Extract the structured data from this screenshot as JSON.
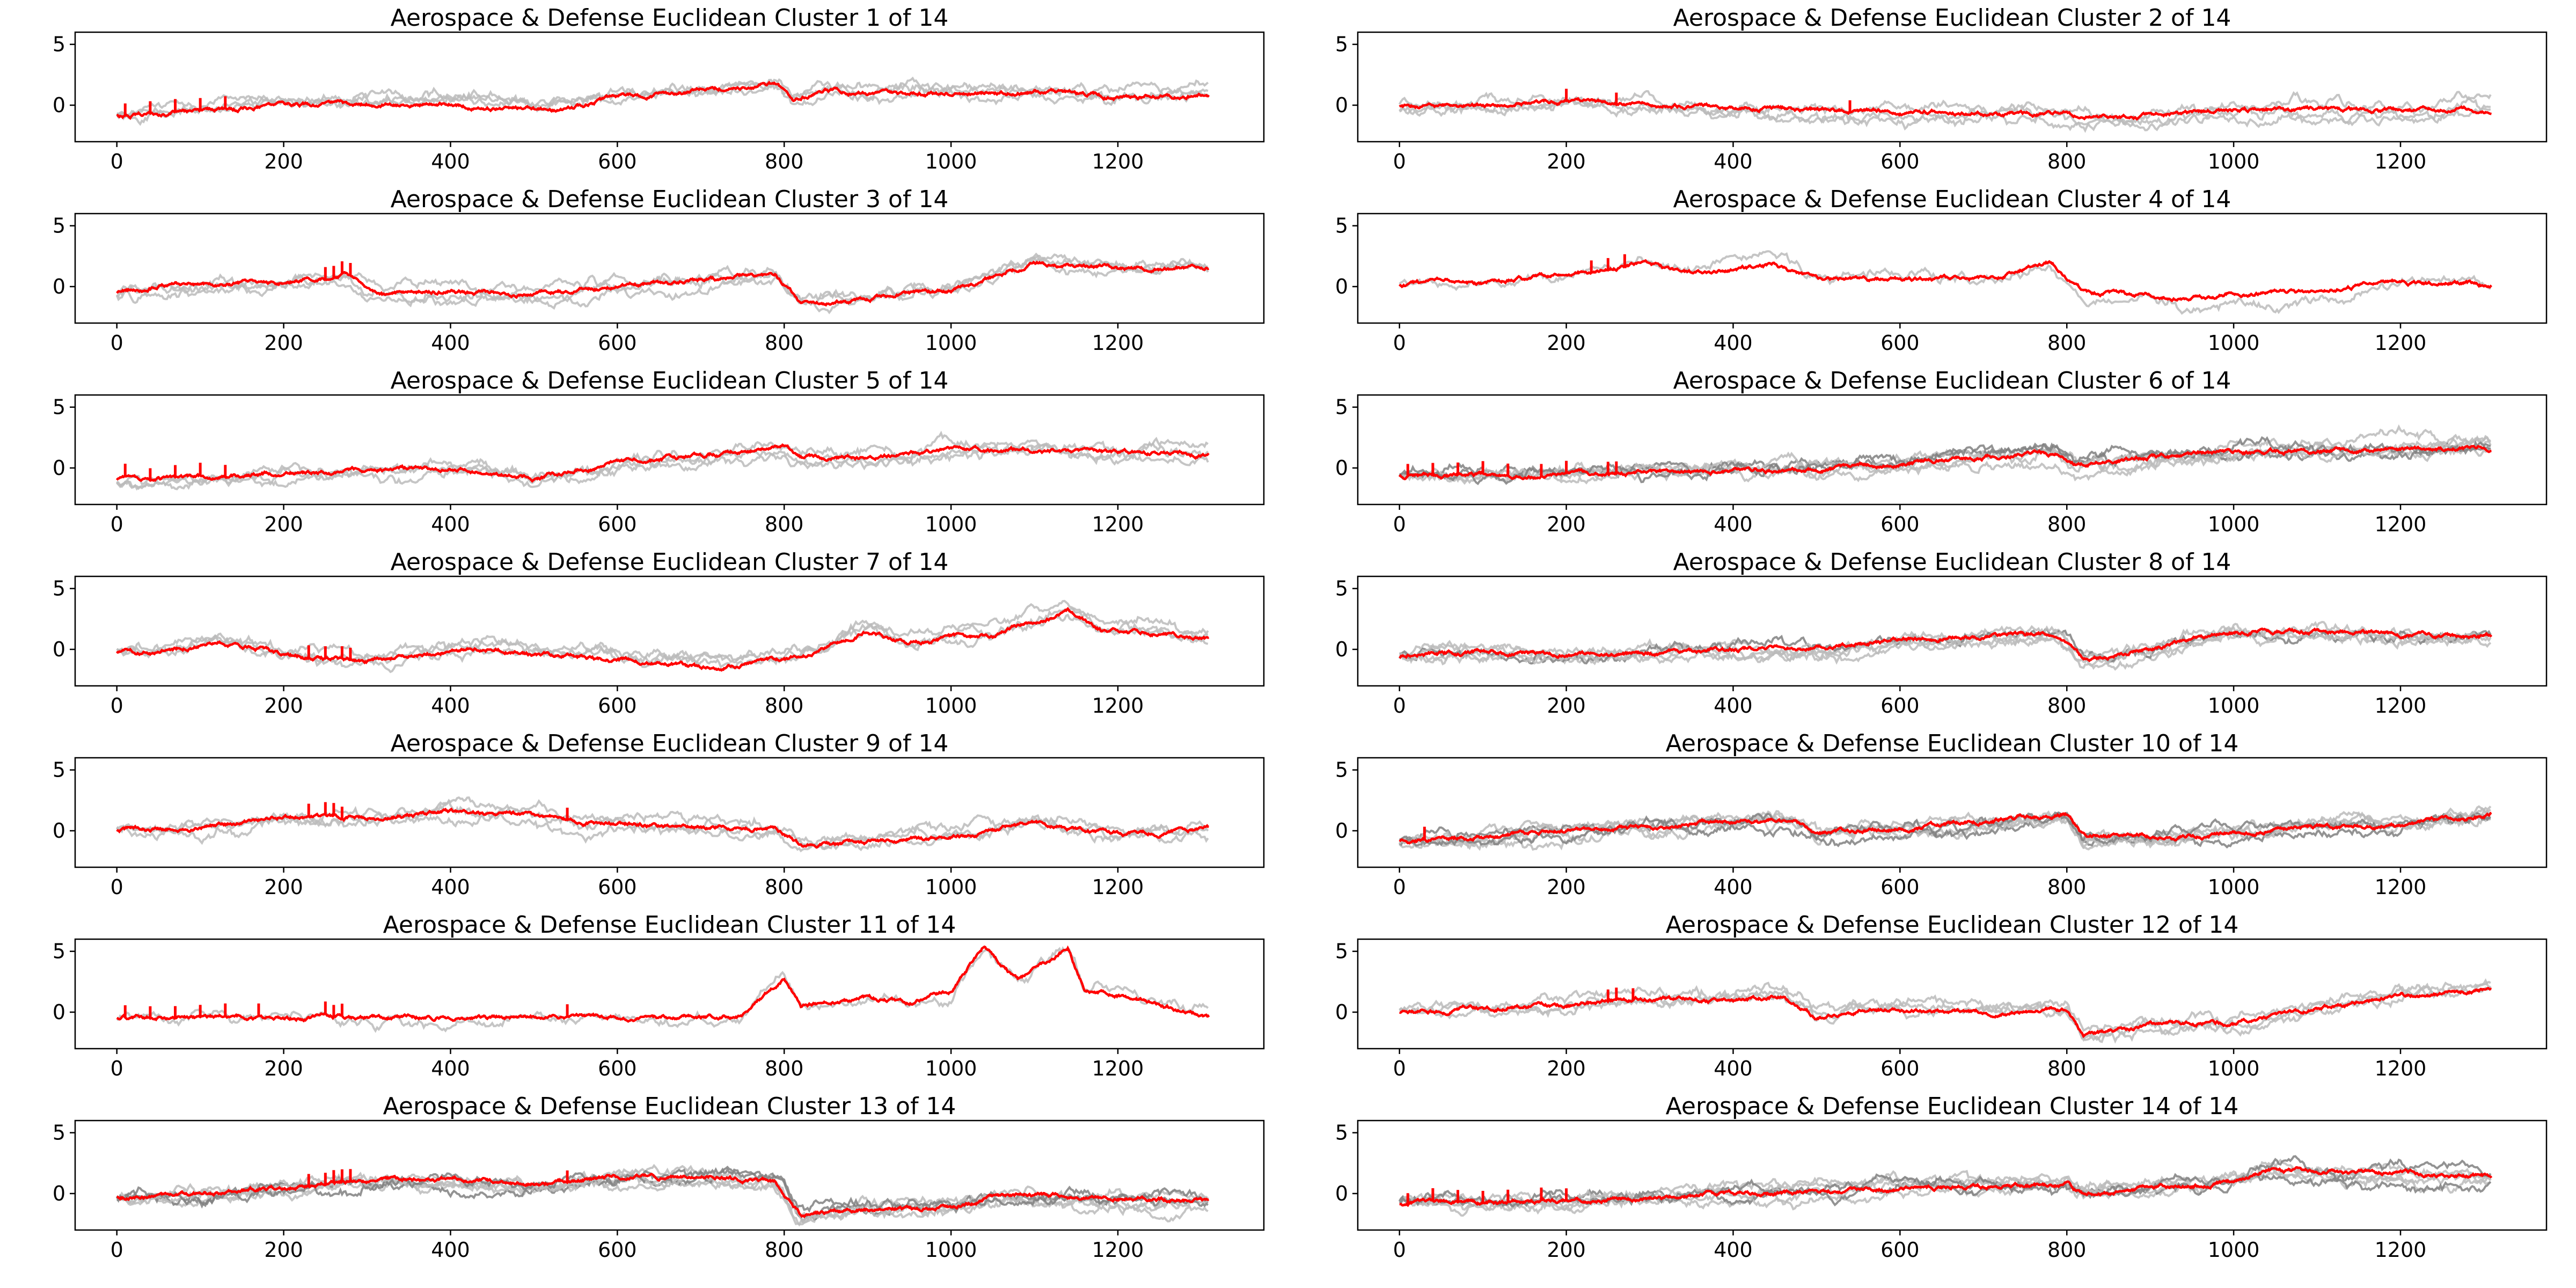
{
  "figure": {
    "title_template": "Aerospace & Defense Euclidean Cluster {n} of 14",
    "x_ticks": [
      0,
      200,
      400,
      600,
      800,
      1000,
      1200
    ],
    "y_ticks": [
      0,
      5
    ],
    "xlim": [
      -50,
      1375
    ],
    "ylim": [
      -3,
      6
    ],
    "colors": {
      "centroid": "#ff0000",
      "member": "#bbbbbb",
      "member_dark": "#808080",
      "frame": "#000000"
    }
  },
  "chart_data": [
    {
      "type": "line",
      "title": "Aerospace & Defense Euclidean Cluster 1 of 14",
      "series_points": 1310,
      "n_members": 3,
      "centroid_anchors": [
        [
          0,
          -0.9
        ],
        [
          100,
          -0.5
        ],
        [
          200,
          0.0
        ],
        [
          300,
          0.1
        ],
        [
          400,
          0.1
        ],
        [
          480,
          -0.3
        ],
        [
          520,
          -0.4
        ],
        [
          600,
          0.6
        ],
        [
          700,
          1.3
        ],
        [
          790,
          1.8
        ],
        [
          810,
          0.3
        ],
        [
          850,
          1.3
        ],
        [
          900,
          1.0
        ],
        [
          1000,
          0.9
        ],
        [
          1100,
          1.2
        ],
        [
          1200,
          0.6
        ],
        [
          1310,
          0.9
        ]
      ],
      "spikes": [
        10,
        40,
        70,
        100,
        130
      ]
    },
    {
      "type": "line",
      "title": "Aerospace & Defense Euclidean Cluster 2 of 14",
      "series_points": 1310,
      "n_members": 3,
      "centroid_anchors": [
        [
          0,
          -0.2
        ],
        [
          100,
          0.0
        ],
        [
          200,
          0.3
        ],
        [
          300,
          0.1
        ],
        [
          400,
          -0.1
        ],
        [
          500,
          -0.4
        ],
        [
          600,
          -0.6
        ],
        [
          700,
          -0.6
        ],
        [
          800,
          -0.8
        ],
        [
          820,
          -1.1
        ],
        [
          900,
          -0.9
        ],
        [
          1000,
          -0.4
        ],
        [
          1100,
          -0.3
        ],
        [
          1200,
          -0.4
        ],
        [
          1310,
          -0.3
        ]
      ],
      "spikes": [
        200,
        260,
        540
      ]
    },
    {
      "type": "line",
      "title": "Aerospace & Defense Euclidean Cluster 3 of 14",
      "series_points": 1310,
      "n_members": 3,
      "centroid_anchors": [
        [
          0,
          -0.5
        ],
        [
          50,
          0.1
        ],
        [
          200,
          0.4
        ],
        [
          280,
          0.9
        ],
        [
          320,
          -0.6
        ],
        [
          400,
          -0.4
        ],
        [
          500,
          -0.6
        ],
        [
          600,
          0.0
        ],
        [
          700,
          0.5
        ],
        [
          790,
          1.0
        ],
        [
          820,
          -1.4
        ],
        [
          900,
          -1.0
        ],
        [
          1000,
          -0.4
        ],
        [
          1100,
          2.0
        ],
        [
          1200,
          1.4
        ],
        [
          1310,
          1.7
        ]
      ],
      "spikes": [
        250,
        260,
        270,
        280
      ]
    },
    {
      "type": "line",
      "title": "Aerospace & Defense Euclidean Cluster 4 of 14",
      "series_points": 1310,
      "n_members": 1,
      "centroid_anchors": [
        [
          0,
          0.0
        ],
        [
          50,
          0.4
        ],
        [
          100,
          0.2
        ],
        [
          200,
          1.0
        ],
        [
          290,
          1.9
        ],
        [
          350,
          1.0
        ],
        [
          450,
          1.8
        ],
        [
          500,
          0.6
        ],
        [
          600,
          0.6
        ],
        [
          700,
          0.7
        ],
        [
          780,
          2.0
        ],
        [
          820,
          -0.5
        ],
        [
          900,
          -0.8
        ],
        [
          950,
          -1.1
        ],
        [
          1000,
          -0.5
        ],
        [
          1100,
          -0.4
        ],
        [
          1200,
          0.4
        ],
        [
          1310,
          0.1
        ]
      ],
      "spikes": [
        230,
        250,
        270
      ]
    },
    {
      "type": "line",
      "title": "Aerospace & Defense Euclidean Cluster 5 of 14",
      "series_points": 1310,
      "n_members": 3,
      "centroid_anchors": [
        [
          0,
          -0.9
        ],
        [
          100,
          -0.8
        ],
        [
          200,
          -0.4
        ],
        [
          300,
          -0.2
        ],
        [
          400,
          0.0
        ],
        [
          500,
          -0.8
        ],
        [
          600,
          0.5
        ],
        [
          700,
          1.0
        ],
        [
          800,
          1.8
        ],
        [
          820,
          0.9
        ],
        [
          900,
          0.8
        ],
        [
          1000,
          1.5
        ],
        [
          1100,
          1.5
        ],
        [
          1200,
          1.2
        ],
        [
          1310,
          1.2
        ]
      ],
      "spikes": [
        10,
        40,
        70,
        100,
        130
      ]
    },
    {
      "type": "line",
      "title": "Aerospace & Defense Euclidean Cluster 6 of 14",
      "series_points": 1310,
      "n_members": 6,
      "centroid_anchors": [
        [
          0,
          -0.7
        ],
        [
          100,
          -0.6
        ],
        [
          200,
          -0.5
        ],
        [
          300,
          -0.4
        ],
        [
          400,
          -0.2
        ],
        [
          500,
          -0.2
        ],
        [
          600,
          0.4
        ],
        [
          700,
          0.9
        ],
        [
          790,
          1.2
        ],
        [
          810,
          0.3
        ],
        [
          900,
          0.9
        ],
        [
          1000,
          1.3
        ],
        [
          1100,
          1.4
        ],
        [
          1200,
          1.5
        ],
        [
          1310,
          1.6
        ]
      ],
      "spikes": [
        10,
        40,
        70,
        100,
        130,
        170,
        200,
        250,
        260
      ]
    },
    {
      "type": "line",
      "title": "Aerospace & Defense Euclidean Cluster 7 of 14",
      "series_points": 1310,
      "n_members": 3,
      "centroid_anchors": [
        [
          0,
          -0.2
        ],
        [
          50,
          -0.3
        ],
        [
          120,
          0.8
        ],
        [
          200,
          -0.5
        ],
        [
          300,
          -0.9
        ],
        [
          430,
          0.2
        ],
        [
          500,
          -0.4
        ],
        [
          600,
          -0.9
        ],
        [
          650,
          -1.0
        ],
        [
          700,
          -1.6
        ],
        [
          800,
          -0.9
        ],
        [
          820,
          -0.6
        ],
        [
          900,
          1.5
        ],
        [
          950,
          0.6
        ],
        [
          1050,
          1.2
        ],
        [
          1140,
          3.2
        ],
        [
          1180,
          1.6
        ],
        [
          1250,
          1.4
        ],
        [
          1310,
          0.8
        ]
      ],
      "spikes": [
        230,
        250,
        270,
        280
      ]
    },
    {
      "type": "line",
      "title": "Aerospace & Defense Euclidean Cluster 8 of 14",
      "series_points": 1310,
      "n_members": 5,
      "centroid_anchors": [
        [
          0,
          -0.5
        ],
        [
          100,
          -0.3
        ],
        [
          200,
          -0.4
        ],
        [
          300,
          -0.3
        ],
        [
          400,
          0.0
        ],
        [
          500,
          0.2
        ],
        [
          600,
          0.8
        ],
        [
          700,
          1.2
        ],
        [
          790,
          1.4
        ],
        [
          820,
          -0.9
        ],
        [
          900,
          0.0
        ],
        [
          1000,
          1.5
        ],
        [
          1100,
          1.5
        ],
        [
          1200,
          1.2
        ],
        [
          1310,
          1.0
        ]
      ],
      "spikes": []
    },
    {
      "type": "line",
      "title": "Aerospace & Defense Euclidean Cluster 9 of 14",
      "series_points": 1310,
      "n_members": 3,
      "centroid_anchors": [
        [
          0,
          0.1
        ],
        [
          100,
          0.2
        ],
        [
          200,
          1.2
        ],
        [
          300,
          1.0
        ],
        [
          400,
          1.5
        ],
        [
          500,
          1.3
        ],
        [
          550,
          0.8
        ],
        [
          600,
          0.6
        ],
        [
          700,
          0.3
        ],
        [
          790,
          0.2
        ],
        [
          820,
          -1.2
        ],
        [
          900,
          -1.0
        ],
        [
          1000,
          -0.6
        ],
        [
          1100,
          0.6
        ],
        [
          1200,
          -0.3
        ],
        [
          1310,
          0.2
        ]
      ],
      "spikes": [
        230,
        250,
        260,
        270,
        540
      ]
    },
    {
      "type": "line",
      "title": "Aerospace & Defense Euclidean Cluster 10 of 14",
      "series_points": 1310,
      "n_members": 6,
      "centroid_anchors": [
        [
          0,
          -0.8
        ],
        [
          100,
          -0.5
        ],
        [
          200,
          0.0
        ],
        [
          300,
          0.4
        ],
        [
          400,
          0.8
        ],
        [
          470,
          0.9
        ],
        [
          500,
          -0.3
        ],
        [
          550,
          0.1
        ],
        [
          600,
          0.2
        ],
        [
          700,
          0.8
        ],
        [
          800,
          1.4
        ],
        [
          820,
          -0.4
        ],
        [
          900,
          -0.5
        ],
        [
          1000,
          -0.2
        ],
        [
          1100,
          0.3
        ],
        [
          1200,
          0.5
        ],
        [
          1310,
          1.3
        ]
      ],
      "spikes": [
        30
      ]
    },
    {
      "type": "line",
      "title": "Aerospace & Defense Euclidean Cluster 11 of 14",
      "series_points": 1310,
      "n_members": 1,
      "centroid_anchors": [
        [
          0,
          -0.4
        ],
        [
          700,
          -0.4
        ],
        [
          750,
          -0.2
        ],
        [
          800,
          2.8
        ],
        [
          820,
          0.4
        ],
        [
          850,
          0.8
        ],
        [
          900,
          1.2
        ],
        [
          950,
          0.8
        ],
        [
          1000,
          1.8
        ],
        [
          1040,
          5.6
        ],
        [
          1080,
          2.6
        ],
        [
          1140,
          5.3
        ],
        [
          1160,
          2.0
        ],
        [
          1200,
          1.5
        ],
        [
          1310,
          -0.5
        ]
      ],
      "spikes": [
        10,
        40,
        70,
        100,
        130,
        170,
        250,
        260,
        270,
        540
      ]
    },
    {
      "type": "line",
      "title": "Aerospace & Defense Euclidean Cluster 12 of 14",
      "series_points": 1310,
      "n_members": 3,
      "centroid_anchors": [
        [
          0,
          0.0
        ],
        [
          100,
          0.4
        ],
        [
          200,
          0.6
        ],
        [
          300,
          1.1
        ],
        [
          400,
          1.0
        ],
        [
          460,
          1.3
        ],
        [
          500,
          -0.5
        ],
        [
          560,
          0.3
        ],
        [
          600,
          0.2
        ],
        [
          700,
          0.0
        ],
        [
          800,
          0.2
        ],
        [
          820,
          -2.0
        ],
        [
          900,
          -1.0
        ],
        [
          1000,
          -0.9
        ],
        [
          1100,
          0.3
        ],
        [
          1200,
          1.3
        ],
        [
          1310,
          1.9
        ]
      ],
      "spikes": [
        250,
        260,
        280
      ]
    },
    {
      "type": "line",
      "title": "Aerospace & Defense Euclidean Cluster 13 of 14",
      "series_points": 1310,
      "n_members": 6,
      "centroid_anchors": [
        [
          0,
          -0.3
        ],
        [
          100,
          -0.1
        ],
        [
          200,
          0.6
        ],
        [
          300,
          1.0
        ],
        [
          400,
          1.2
        ],
        [
          500,
          0.8
        ],
        [
          550,
          1.1
        ],
        [
          600,
          1.3
        ],
        [
          700,
          1.4
        ],
        [
          790,
          1.0
        ],
        [
          820,
          -1.8
        ],
        [
          900,
          -1.2
        ],
        [
          1000,
          -1.2
        ],
        [
          1050,
          -0.2
        ],
        [
          1100,
          -0.1
        ],
        [
          1200,
          -0.4
        ],
        [
          1310,
          -0.6
        ]
      ],
      "spikes": [
        230,
        250,
        260,
        270,
        280,
        540
      ]
    },
    {
      "type": "line",
      "title": "Aerospace & Defense Euclidean Cluster 14 of 14",
      "series_points": 1310,
      "n_members": 6,
      "centroid_anchors": [
        [
          0,
          -0.8
        ],
        [
          100,
          -0.7
        ],
        [
          200,
          -0.5
        ],
        [
          300,
          -0.3
        ],
        [
          400,
          -0.1
        ],
        [
          500,
          0.1
        ],
        [
          600,
          0.4
        ],
        [
          700,
          0.6
        ],
        [
          800,
          0.7
        ],
        [
          820,
          -0.2
        ],
        [
          900,
          0.4
        ],
        [
          1000,
          1.0
        ],
        [
          1040,
          2.0
        ],
        [
          1100,
          1.8
        ],
        [
          1200,
          1.7
        ],
        [
          1310,
          1.4
        ]
      ],
      "spikes": [
        10,
        40,
        70,
        100,
        130,
        170,
        200
      ]
    }
  ]
}
